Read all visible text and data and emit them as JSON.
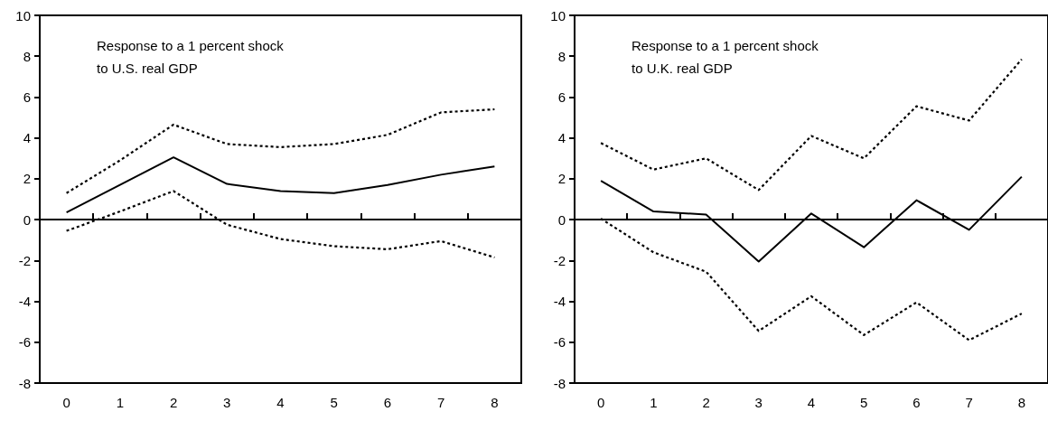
{
  "chart_data": [
    {
      "type": "line",
      "title": "Response to a 1 percent shock\nto U.S. real GDP",
      "categories": [
        "0",
        "1",
        "2",
        "3",
        "4",
        "5",
        "6",
        "7",
        "8"
      ],
      "series": [
        {
          "color": "#000000",
          "line_style": "solid",
          "values": [
            0.35,
            1.7,
            3.05,
            1.75,
            1.4,
            1.3,
            1.7,
            2.2,
            2.6
          ]
        },
        {
          "color": "#000000",
          "line_style": "dashed",
          "values": [
            1.3,
            2.9,
            4.65,
            3.7,
            3.55,
            3.7,
            4.15,
            5.25,
            5.4
          ]
        },
        {
          "color": "#000000",
          "line_style": "dashed",
          "values": [
            -0.55,
            0.4,
            1.4,
            -0.25,
            -0.95,
            -1.3,
            -1.45,
            -1.05,
            -1.85
          ]
        }
      ],
      "ylim": [
        -8,
        10
      ],
      "yticks": [
        -8,
        -6,
        -4,
        -2,
        0,
        2,
        4,
        6,
        8,
        10
      ],
      "ref_lines": [
        {
          "axis": "y",
          "value": 0,
          "color": "#000000"
        }
      ],
      "marker": "none"
    },
    {
      "type": "line",
      "title": "Response to a 1 percent shock\nto U.K. real GDP",
      "categories": [
        "0",
        "1",
        "2",
        "3",
        "4",
        "5",
        "6",
        "7",
        "8"
      ],
      "series": [
        {
          "color": "#000000",
          "line_style": "solid",
          "values": [
            1.9,
            0.4,
            0.25,
            -2.05,
            0.3,
            -1.35,
            0.95,
            -0.5,
            2.1
          ]
        },
        {
          "color": "#000000",
          "line_style": "dashed",
          "values": [
            3.75,
            2.45,
            3.0,
            1.45,
            4.1,
            3.0,
            5.55,
            4.85,
            7.85
          ]
        },
        {
          "color": "#000000",
          "line_style": "dashed",
          "values": [
            0.05,
            -1.6,
            -2.55,
            -5.45,
            -3.75,
            -5.65,
            -4.05,
            -5.9,
            -4.6
          ]
        }
      ],
      "ylim": [
        -8,
        10
      ],
      "yticks": [
        -8,
        -6,
        -4,
        -2,
        0,
        2,
        4,
        6,
        8,
        10
      ],
      "ref_lines": [
        {
          "axis": "y",
          "value": 0,
          "color": "#000000"
        }
      ],
      "marker": "none"
    }
  ]
}
